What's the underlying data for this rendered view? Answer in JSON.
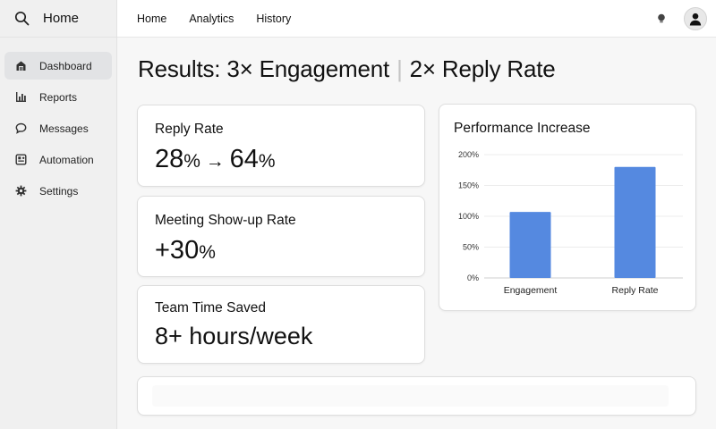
{
  "sidebar": {
    "title": "Home",
    "search_icon": "search-icon",
    "items": [
      {
        "label": "Dashboard",
        "icon": "dashboard-icon",
        "active": true
      },
      {
        "label": "Reports",
        "icon": "bar-chart-icon",
        "active": false
      },
      {
        "label": "Messages",
        "icon": "chat-bubble-icon",
        "active": false
      },
      {
        "label": "Automation",
        "icon": "automation-icon",
        "active": false
      },
      {
        "label": "Settings",
        "icon": "gear-icon",
        "active": false
      }
    ]
  },
  "topbar": {
    "links": [
      "Home",
      "Analytics",
      "History"
    ],
    "icons": [
      "lightbulb-icon",
      "user-avatar-icon"
    ]
  },
  "page": {
    "title_left": "Results: 3× Engagement",
    "title_divider": "|",
    "title_right": "2× Reply Rate"
  },
  "stats": [
    {
      "label": "Reply Rate",
      "value_a": "28",
      "unit_a": "%",
      "arrow": " → ",
      "value_b": "64",
      "unit_b": "%"
    },
    {
      "label": "Meeting Show-up Rate",
      "value": "+30",
      "unit": "%"
    },
    {
      "label": "Team Time Saved",
      "value": "8+ hours/week"
    }
  ],
  "chart_title": "Performance Increase",
  "chart_data": {
    "type": "bar",
    "categories": [
      "Engagement",
      "Reply Rate"
    ],
    "values": [
      107,
      180
    ],
    "yticks": [
      "0%",
      "50%",
      "100%",
      "150%",
      "200%"
    ],
    "ylim": [
      0,
      200
    ],
    "grid": true,
    "bar_color": "#5589e0"
  },
  "colors": {
    "accent": "#5589e0",
    "sidebar_bg": "#f0f0f0",
    "active_item_bg": "#e2e3e5"
  }
}
